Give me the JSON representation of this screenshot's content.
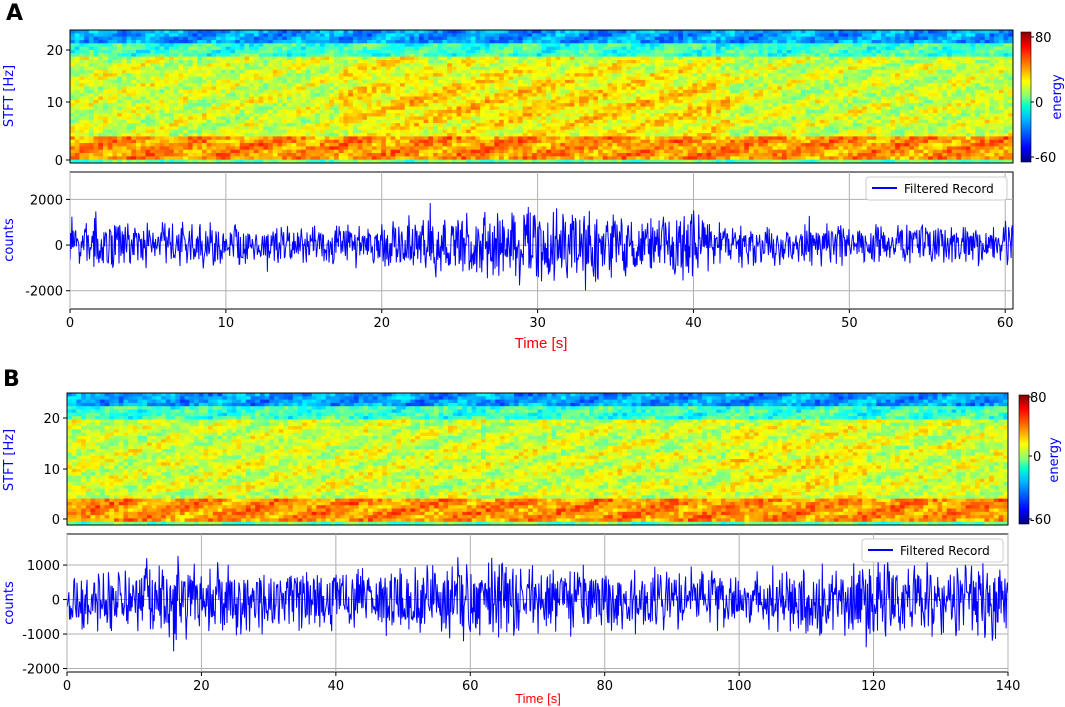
{
  "chart_data": [
    {
      "panel": "A",
      "type": "heatmap",
      "ylabel": "STFT [Hz]",
      "ylim": [
        0,
        24
      ],
      "yticks": [
        0,
        10,
        20
      ],
      "colorbar": {
        "label": "energy",
        "ticks": [
          80,
          0,
          -60
        ],
        "range": [
          -60,
          80
        ]
      }
    },
    {
      "panel": "A",
      "type": "line",
      "xlabel": "Time [s]",
      "ylabel": "counts",
      "xlim": [
        0,
        60.5
      ],
      "ylim": [
        -2800,
        3200
      ],
      "xticks": [
        0,
        10,
        20,
        30,
        40,
        50,
        60
      ],
      "yticks": [
        2000,
        0,
        -2000
      ],
      "grid": true,
      "legend": {
        "position": "top-right",
        "entries": [
          "Filtered Record"
        ]
      },
      "series": [
        {
          "name": "Filtered Record",
          "color": "#0000ff",
          "envelope_times": [
            0,
            5,
            10,
            15,
            20,
            22,
            25,
            28,
            30,
            32,
            35,
            38,
            40,
            42,
            45,
            50,
            55,
            60
          ],
          "envelope_amplitude": [
            1300,
            1150,
            1100,
            1050,
            1200,
            1400,
            1700,
            1800,
            1950,
            1900,
            1700,
            1600,
            1850,
            1200,
            1050,
            1050,
            1050,
            1100
          ]
        }
      ]
    },
    {
      "panel": "B",
      "type": "heatmap",
      "ylabel": "STFT [Hz]",
      "ylim": [
        0,
        24
      ],
      "yticks": [
        0,
        10,
        20
      ],
      "colorbar": {
        "label": "energy",
        "ticks": [
          80,
          0,
          -60
        ],
        "range": [
          -60,
          80
        ]
      }
    },
    {
      "panel": "B",
      "type": "line",
      "xlabel": "Time [s]",
      "ylabel": "counts",
      "xlim": [
        0,
        140
      ],
      "ylim": [
        -2100,
        1900
      ],
      "xticks": [
        0,
        20,
        40,
        60,
        80,
        100,
        120,
        140
      ],
      "yticks": [
        1000,
        0,
        -1000,
        -2000
      ],
      "grid": true,
      "legend": {
        "position": "top-right",
        "entries": [
          "Filtered Record"
        ]
      },
      "series": [
        {
          "name": "Filtered Record",
          "color": "#0000ff",
          "envelope_times": [
            0,
            10,
            15,
            20,
            30,
            40,
            50,
            60,
            65,
            70,
            80,
            90,
            100,
            110,
            120,
            125,
            130,
            140
          ],
          "envelope_amplitude": [
            900,
            1000,
            1400,
            1300,
            1000,
            1000,
            1100,
            1500,
            1300,
            1200,
            1100,
            1100,
            1000,
            1100,
            1400,
            1200,
            1300,
            1400
          ]
        }
      ]
    }
  ],
  "panels": {
    "a_letter": "A",
    "b_letter": "B"
  }
}
